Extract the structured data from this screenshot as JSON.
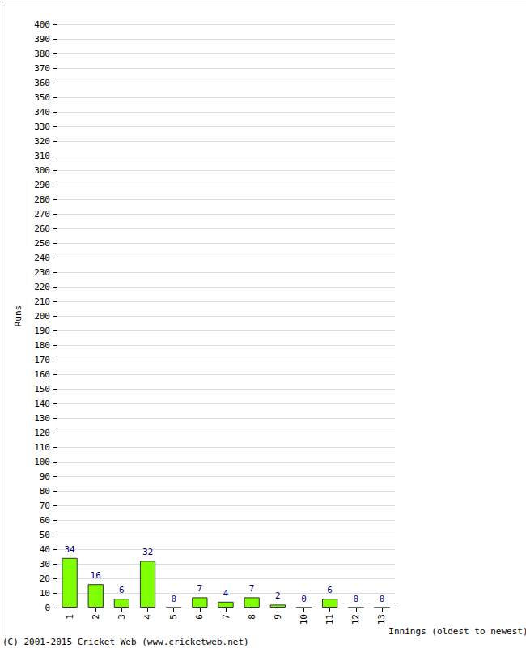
{
  "chart_data": {
    "type": "bar",
    "y_label": "Runs",
    "x_label": "Innings (oldest to newest)",
    "annotations": [
      "(C) 2001-2015 Cricket Web (www.cricketweb.net)"
    ],
    "categories": [
      "1",
      "2",
      "3",
      "4",
      "5",
      "6",
      "7",
      "8",
      "9",
      "10",
      "11",
      "12",
      "13"
    ],
    "values": [
      34,
      16,
      6,
      32,
      0,
      7,
      4,
      7,
      2,
      0,
      6,
      0,
      0
    ],
    "color": "#80ff00",
    "ylim": [
      0,
      400
    ],
    "yticks": [
      0,
      10,
      20,
      30,
      40,
      50,
      60,
      70,
      80,
      90,
      100,
      110,
      120,
      130,
      140,
      150,
      160,
      170,
      180,
      190,
      200,
      210,
      220,
      230,
      240,
      250,
      260,
      270,
      280,
      290,
      300,
      310,
      320,
      330,
      340,
      350,
      360,
      370,
      380,
      390,
      400
    ],
    "grid": true,
    "data_labels": true
  }
}
